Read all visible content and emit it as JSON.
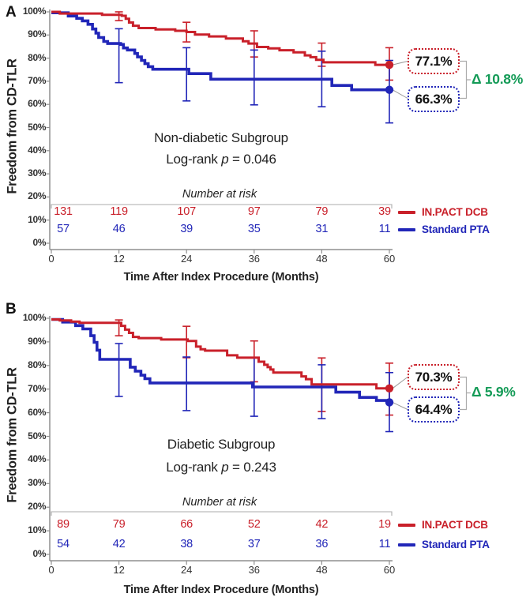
{
  "figure": {
    "number_at_risk_label": "Number at risk",
    "colors": {
      "dcb_red": "#c9202a",
      "pta_blue": "#2126b8",
      "delta_green": "#149b57",
      "axis_gray": "#8f8f8f",
      "bracket_gray": "#ababab",
      "leader_gray": "#9a9a9a"
    }
  },
  "chart_data": [
    {
      "type": "line",
      "panel": "A",
      "subtitle": "Non-diabetic Subgroup",
      "logrank": {
        "prefix": "Log-rank ",
        "symbol": "p",
        "rest": " = 0.046"
      },
      "ylabel": "Freedom from CD-TLR",
      "xlabel": "Time After Index Procedure (Months)",
      "xlim": [
        0,
        60
      ],
      "ylim": [
        0,
        100
      ],
      "x_ticks": [
        0,
        12,
        24,
        36,
        48,
        60
      ],
      "y_ticks": [
        0,
        10,
        20,
        30,
        40,
        50,
        60,
        70,
        80,
        90,
        100
      ],
      "delta_label": "Δ 10.8%",
      "series": [
        {
          "name": "IN.PACT DCB",
          "color": "#c9202a",
          "end_label": "77.1%",
          "end_value": 77.1,
          "steps": [
            [
              0,
              100
            ],
            [
              1.5,
              99.3
            ],
            [
              9,
              98.7
            ],
            [
              12.5,
              98.3
            ],
            [
              13.2,
              97
            ],
            [
              13.8,
              95.4
            ],
            [
              14.5,
              94
            ],
            [
              15.5,
              93
            ],
            [
              18.5,
              92.4
            ],
            [
              22,
              91.8
            ],
            [
              24,
              91.3
            ],
            [
              25.5,
              90.2
            ],
            [
              28,
              89.4
            ],
            [
              31,
              88.5
            ],
            [
              34,
              87.3
            ],
            [
              35,
              86.3
            ],
            [
              36.5,
              84.8
            ],
            [
              38.5,
              84.2
            ],
            [
              40.5,
              83.4
            ],
            [
              43,
              82.5
            ],
            [
              45,
              81.2
            ],
            [
              46,
              80.4
            ],
            [
              47,
              79.3
            ],
            [
              48.3,
              78.2
            ],
            [
              57.5,
              77.1
            ],
            [
              60,
              77.1
            ]
          ],
          "error_bars": [
            [
              12,
              96.2,
              100
            ],
            [
              24,
              87,
              95.5
            ],
            [
              36,
              80.5,
              91.8
            ],
            [
              48,
              76.5,
              86.5
            ],
            [
              60,
              70.5,
              84.5
            ]
          ],
          "at_risk": [
            131,
            119,
            107,
            97,
            79,
            39
          ]
        },
        {
          "name": "Standard PTA",
          "color": "#2126b8",
          "end_label": "66.3%",
          "end_value": 66.3,
          "steps": [
            [
              0,
              99.6
            ],
            [
              3,
              98.2
            ],
            [
              4.5,
              97.2
            ],
            [
              5.5,
              96.1
            ],
            [
              6.5,
              94.6
            ],
            [
              7.3,
              92.6
            ],
            [
              7.9,
              90.8
            ],
            [
              8.4,
              88.9
            ],
            [
              9.3,
              87.2
            ],
            [
              10,
              86.3
            ],
            [
              12.3,
              85.9
            ],
            [
              12.8,
              84.4
            ],
            [
              13.5,
              83.5
            ],
            [
              14.8,
              82
            ],
            [
              15.3,
              80.5
            ],
            [
              16,
              79
            ],
            [
              16.6,
              77.6
            ],
            [
              17.2,
              76.3
            ],
            [
              18,
              75.2
            ],
            [
              24.4,
              73.3
            ],
            [
              28.3,
              70.9
            ],
            [
              49.8,
              68.2
            ],
            [
              53.3,
              66.3
            ],
            [
              60,
              66.3
            ]
          ],
          "error_bars": [
            [
              12,
              69.4,
              92.7
            ],
            [
              24,
              61.5,
              84.5
            ],
            [
              36,
              59.8,
              83.5
            ],
            [
              48,
              59,
              83
            ],
            [
              60,
              52,
              79
            ]
          ],
          "at_risk": [
            57,
            46,
            39,
            35,
            31,
            11
          ]
        }
      ]
    },
    {
      "type": "line",
      "panel": "B",
      "subtitle": "Diabetic Subgroup",
      "logrank": {
        "prefix": "Log-rank ",
        "symbol": "p",
        "rest": " = 0.243"
      },
      "ylabel": "Freedom from CD-TLR",
      "xlabel": "Time After Index Procedure (Months)",
      "xlim": [
        0,
        60
      ],
      "ylim": [
        0,
        100
      ],
      "x_ticks": [
        0,
        12,
        24,
        36,
        48,
        60
      ],
      "y_ticks": [
        0,
        10,
        20,
        30,
        40,
        50,
        60,
        70,
        80,
        90,
        100
      ],
      "delta_label": "Δ 5.9%",
      "series": [
        {
          "name": "IN.PACT DCB",
          "color": "#c9202a",
          "end_label": "70.3%",
          "end_value": 70.3,
          "steps": [
            [
              0,
              99.5
            ],
            [
              1.5,
              99.1
            ],
            [
              3.5,
              98.6
            ],
            [
              5,
              98.1
            ],
            [
              12.4,
              96.8
            ],
            [
              13.1,
              95.2
            ],
            [
              13.8,
              93.8
            ],
            [
              14.5,
              92.1
            ],
            [
              15.5,
              91.6
            ],
            [
              19.5,
              91
            ],
            [
              24.2,
              90.4
            ],
            [
              25.7,
              88
            ],
            [
              26.5,
              86.9
            ],
            [
              27.3,
              86.3
            ],
            [
              31.2,
              84.3
            ],
            [
              33,
              83.3
            ],
            [
              36.8,
              81.6
            ],
            [
              37.8,
              80.3
            ],
            [
              38.4,
              79.3
            ],
            [
              38.9,
              78.3
            ],
            [
              39.4,
              77
            ],
            [
              44.4,
              75.4
            ],
            [
              45.2,
              74.2
            ],
            [
              46.2,
              72
            ],
            [
              57.7,
              70.3
            ],
            [
              60,
              70.3
            ]
          ],
          "error_bars": [
            [
              12,
              92.6,
              99.3
            ],
            [
              24,
              83.3,
              96.6
            ],
            [
              36,
              73.1,
              90.4
            ],
            [
              48,
              60.5,
              83.2
            ],
            [
              60,
              59,
              81
            ]
          ],
          "at_risk": [
            89,
            79,
            66,
            52,
            42,
            19
          ]
        },
        {
          "name": "Standard PTA",
          "color": "#2126b8",
          "end_label": "64.4%",
          "end_value": 64.4,
          "steps": [
            [
              0,
              99.5
            ],
            [
              2,
              98.4
            ],
            [
              4.3,
              96.9
            ],
            [
              5.6,
              95.5
            ],
            [
              7,
              92.6
            ],
            [
              7.6,
              89.8
            ],
            [
              8.1,
              86.5
            ],
            [
              8.6,
              82.6
            ],
            [
              14,
              79.3
            ],
            [
              14.9,
              77.6
            ],
            [
              15.9,
              75.9
            ],
            [
              16.6,
              74.4
            ],
            [
              17.5,
              72.6
            ],
            [
              35.7,
              70.9
            ],
            [
              50.5,
              68.7
            ],
            [
              54.7,
              66.5
            ],
            [
              57.7,
              65.2
            ],
            [
              60,
              64.4
            ]
          ],
          "error_bars": [
            [
              12,
              66.9,
              89.3
            ],
            [
              24,
              60.9,
              83.6
            ],
            [
              36,
              58.5,
              83.3
            ],
            [
              48,
              57.5,
              80.3
            ],
            [
              60,
              52,
              77
            ]
          ],
          "at_risk": [
            54,
            42,
            38,
            37,
            36,
            11
          ]
        }
      ]
    }
  ]
}
